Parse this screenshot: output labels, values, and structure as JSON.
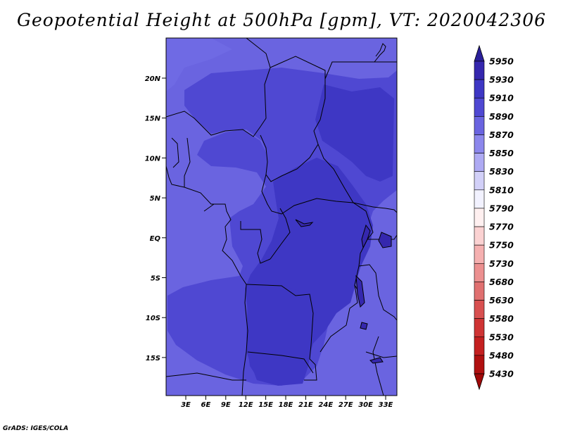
{
  "title": "Geopotential Height at 500hPa [gpm], VT: 2020042306",
  "credit": "GrADS: IGES/COLA",
  "map": {
    "lat_ticks": [
      "20N",
      "15N",
      "10N",
      "5N",
      "EQ",
      "5S",
      "10S",
      "15S"
    ],
    "lon_ticks": [
      "3E",
      "6E",
      "9E",
      "12E",
      "15E",
      "18E",
      "21E",
      "24E",
      "27E",
      "30E",
      "33E"
    ],
    "fill_colors": {
      "h5870": "#6a64e0",
      "h5890": "#4f48d2",
      "h5910": "#3e37c4"
    }
  },
  "colorbar": {
    "levels": [
      "5950",
      "5930",
      "5910",
      "5890",
      "5870",
      "5850",
      "5830",
      "5810",
      "5790",
      "5770",
      "5750",
      "5730",
      "5680",
      "5630",
      "5580",
      "5530",
      "5480",
      "5430"
    ],
    "colors": [
      "#2a1f9a",
      "#3527ae",
      "#3e37c4",
      "#4f48d2",
      "#6a64e0",
      "#8c87ec",
      "#aeaaf3",
      "#d2d0f8",
      "#f2f2ff",
      "#fff0f0",
      "#fbd2d2",
      "#f5b0b0",
      "#ec9090",
      "#e07070",
      "#d85050",
      "#cf3434",
      "#c42020",
      "#b01010",
      "#a00808"
    ]
  }
}
